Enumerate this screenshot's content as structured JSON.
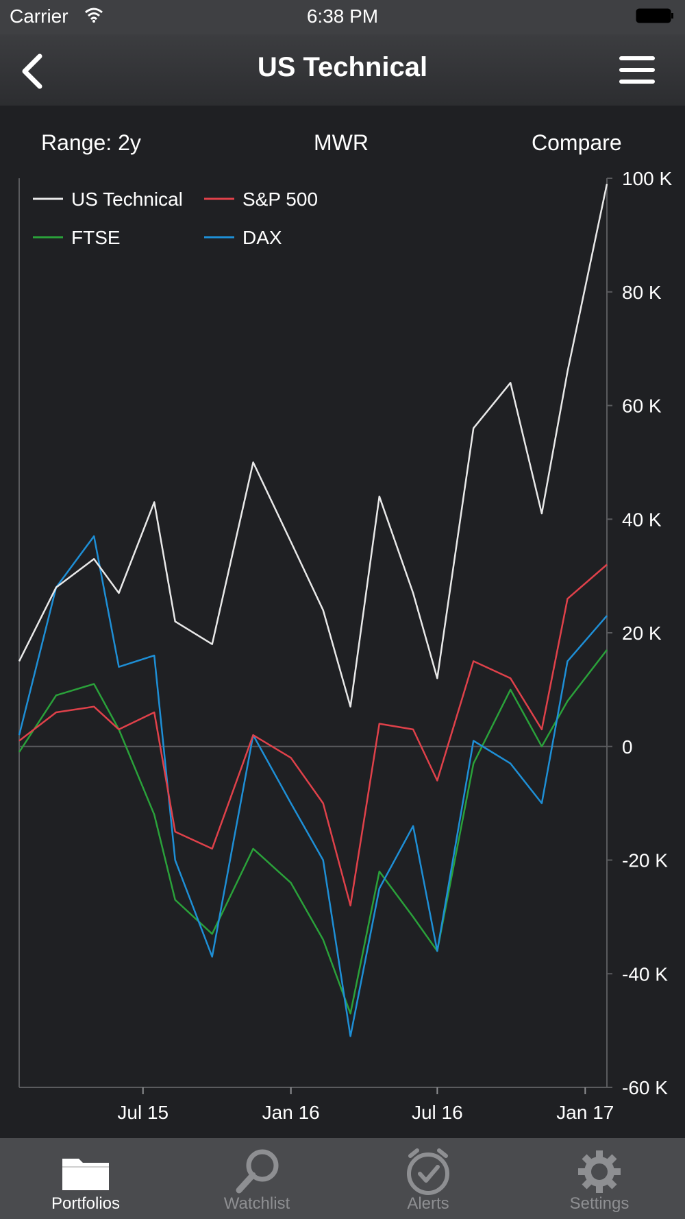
{
  "status_bar": {
    "carrier": "Carrier",
    "time": "6:38 PM"
  },
  "nav": {
    "title": "US Technical"
  },
  "controls": {
    "range": "Range: 2y",
    "metric": "MWR",
    "compare": "Compare"
  },
  "tabs": [
    {
      "label": "Portfolios",
      "icon": "folder-icon",
      "active": true
    },
    {
      "label": "Watchlist",
      "icon": "magnifier-icon",
      "active": false
    },
    {
      "label": "Alerts",
      "icon": "alarm-clock-icon",
      "active": false
    },
    {
      "label": "Settings",
      "icon": "gear-icon",
      "active": false
    }
  ],
  "chart_data": {
    "type": "line",
    "ylim": [
      -60000,
      100000
    ],
    "y_ticks": [
      "100 K",
      "80 K",
      "60 K",
      "40 K",
      "20 K",
      "0",
      "-20 K",
      "-40 K",
      "-60 K"
    ],
    "y_tick_values": [
      100000,
      80000,
      60000,
      40000,
      20000,
      0,
      -20000,
      -40000,
      -60000
    ],
    "x_ticks": [
      "Jul 15",
      "Jan 16",
      "Jul 16",
      "Jan 17"
    ],
    "xlim": [
      "2015-01-28",
      "2017-01-28"
    ],
    "x": [
      "2015-01-28",
      "2015-03-15",
      "2015-05-01",
      "2015-06-01",
      "2015-07-15",
      "2015-08-10",
      "2015-09-25",
      "2015-11-15",
      "2016-01-01",
      "2016-02-10",
      "2016-03-15",
      "2016-04-20",
      "2016-06-01",
      "2016-07-01",
      "2016-08-15",
      "2016-09-30",
      "2016-11-08",
      "2016-12-10",
      "2017-01-28"
    ],
    "series": [
      {
        "name": "US Technical",
        "color": "#e9e9e9",
        "values": [
          15000,
          28000,
          33000,
          27000,
          43000,
          22000,
          18000,
          50000,
          36000,
          24000,
          7000,
          44000,
          27000,
          12000,
          56000,
          64000,
          41000,
          66000,
          99000
        ]
      },
      {
        "name": "S&P 500",
        "color": "#e0414a",
        "values": [
          1000,
          6000,
          7000,
          3000,
          6000,
          -15000,
          -18000,
          2000,
          -2000,
          -10000,
          -28000,
          4000,
          3000,
          -6000,
          15000,
          12000,
          3000,
          26000,
          32000
        ]
      },
      {
        "name": "FTSE",
        "color": "#2aa13a",
        "values": [
          -1000,
          9000,
          11000,
          3000,
          -12000,
          -27000,
          -33000,
          -18000,
          -24000,
          -34000,
          -47000,
          -22000,
          -30000,
          -36000,
          -3000,
          10000,
          0,
          8000,
          17000
        ]
      },
      {
        "name": "DAX",
        "color": "#1e8fd6",
        "values": [
          2000,
          28000,
          37000,
          14000,
          16000,
          -20000,
          -37000,
          2000,
          -10000,
          -20000,
          -51000,
          -25000,
          -14000,
          -36000,
          1000,
          -3000,
          -10000,
          15000,
          23000
        ]
      }
    ]
  }
}
